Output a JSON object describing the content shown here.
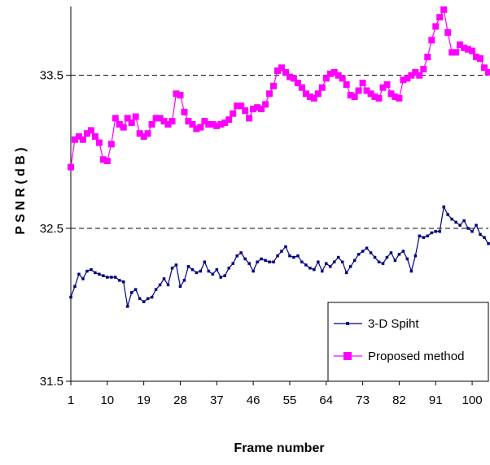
{
  "chart_data": {
    "type": "line",
    "xlabel": "Frame number",
    "ylabel": "P S N R ( d B )",
    "ylim": [
      31.5,
      33.95
    ],
    "xlim": [
      1,
      104
    ],
    "x_ticks": [
      "1",
      "10",
      "19",
      "28",
      "37",
      "46",
      "55",
      "64",
      "73",
      "82",
      "91",
      "100"
    ],
    "y_ticks": [
      "31.5",
      "32.5",
      "33.5"
    ],
    "dashed_gridlines": [
      32.5,
      33.5
    ],
    "legend_position": "bottom-right",
    "series": [
      {
        "name": "3-D Spiht",
        "color": "#000080",
        "marker": "small-square",
        "values": [
          32.05,
          32.12,
          32.2,
          32.17,
          32.22,
          32.23,
          32.21,
          32.2,
          32.19,
          32.18,
          32.18,
          32.18,
          32.16,
          32.15,
          31.99,
          32.08,
          32.1,
          32.04,
          32.02,
          32.04,
          32.05,
          32.1,
          32.13,
          32.17,
          32.13,
          32.24,
          32.26,
          32.12,
          32.16,
          32.25,
          32.23,
          32.21,
          32.22,
          32.28,
          32.22,
          32.2,
          32.23,
          32.18,
          32.19,
          32.24,
          32.27,
          32.32,
          32.34,
          32.3,
          32.27,
          32.22,
          32.28,
          32.3,
          32.29,
          32.28,
          32.28,
          32.32,
          32.35,
          32.38,
          32.32,
          32.31,
          32.32,
          32.28,
          32.26,
          32.24,
          32.23,
          32.28,
          32.22,
          32.27,
          32.25,
          32.28,
          32.31,
          32.28,
          32.21,
          32.25,
          32.29,
          32.33,
          32.35,
          32.37,
          32.34,
          32.31,
          32.28,
          32.27,
          32.31,
          32.34,
          32.29,
          32.33,
          32.35,
          32.3,
          32.22,
          32.32,
          32.45,
          32.44,
          32.45,
          32.47,
          32.48,
          32.48,
          32.64,
          32.59,
          32.56,
          32.54,
          32.52,
          32.55,
          32.5,
          32.48,
          32.52,
          32.46,
          32.44,
          32.4
        ]
      },
      {
        "name": "Proposed method",
        "color": "#ff00ff",
        "marker": "large-square",
        "values": [
          32.9,
          33.08,
          33.1,
          33.08,
          33.12,
          33.14,
          33.1,
          33.06,
          32.95,
          32.94,
          33.05,
          33.22,
          33.18,
          33.16,
          33.22,
          33.19,
          33.23,
          33.12,
          33.1,
          33.12,
          33.18,
          33.22,
          33.22,
          33.2,
          33.18,
          33.2,
          33.38,
          33.37,
          33.26,
          33.2,
          33.18,
          33.15,
          33.16,
          33.2,
          33.18,
          33.18,
          33.17,
          33.18,
          33.19,
          33.21,
          33.25,
          33.3,
          33.3,
          33.27,
          33.22,
          33.28,
          33.29,
          33.28,
          33.31,
          33.38,
          33.43,
          33.53,
          33.55,
          33.52,
          33.49,
          33.48,
          33.45,
          33.42,
          33.38,
          33.36,
          33.35,
          33.38,
          33.42,
          33.48,
          33.51,
          33.52,
          33.5,
          33.48,
          33.44,
          33.37,
          33.36,
          33.4,
          33.45,
          33.4,
          33.38,
          33.36,
          33.35,
          33.42,
          33.44,
          33.38,
          33.36,
          33.35,
          33.47,
          33.48,
          33.5,
          33.52,
          33.5,
          33.54,
          33.62,
          33.73,
          33.82,
          33.88,
          33.93,
          33.78,
          33.65,
          33.65,
          33.7,
          33.68,
          33.67,
          33.66,
          33.62,
          33.61,
          33.55,
          33.52
        ]
      }
    ]
  }
}
